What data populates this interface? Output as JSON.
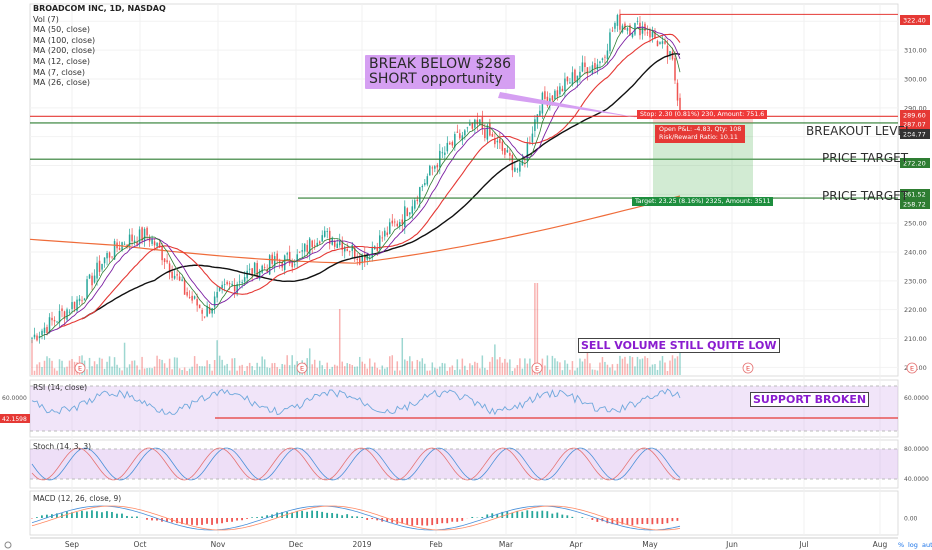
{
  "legend": {
    "title": "BROADCOM INC, 1D, NASDAQ",
    "items": [
      "Vol (7)",
      "MA (50, close)",
      "MA (100, close)",
      "MA (200, close)",
      "MA (12, close)",
      "MA (7, close)",
      "MA (26, close)"
    ]
  },
  "annotations": {
    "callout_line1": "BREAK BELOW $286",
    "callout_line2": "SHORT opportunity",
    "sell_volume": "SELL VOLUME STILL QUITE LOW",
    "support_broken": "SUPPORT BROKEN",
    "breakout_level": "BREAKOUT LEVEL",
    "price_target_1": "PRICE TARGET",
    "price_target_2": "PRICE TARGET"
  },
  "position": {
    "stop": "Stop: 2.30 (0.81%) 230, Amount: 751.6",
    "open_pnl": "Open P&L: -4.83, Qty: 108",
    "risk_reward": "Risk/Reward Ratio: 10.11",
    "target": "Target: 23.25 (8.16%) 2325, Amount: 3511"
  },
  "panels": {
    "rsi": "RSI (14, close)",
    "stoch": "Stoch (14, 3, 3)",
    "macd": "MACD (12, 26, close, 9)"
  },
  "colors": {
    "up": "#26a69a",
    "down": "#ef5350",
    "ma_black": "#111111",
    "ma_red": "#e53935",
    "ma_purple": "#7b1fa2",
    "ma_green": "#2e7d32",
    "ma_orange": "#ef6c3a",
    "rsi_line": "#6fa8dc",
    "stoch_k": "#4a90d9",
    "stoch_d": "#e57373",
    "macd_line": "#4a90d9",
    "signal_line": "#ff8a65"
  },
  "chart_data": {
    "type": "candlestick",
    "symbol": "BROADCOM INC",
    "interval": "1D",
    "exchange": "NASDAQ",
    "price_axis": {
      "ticks": [
        200.0,
        210.0,
        220.0,
        230.0,
        240.0,
        250.0,
        260.0,
        270.0,
        280.0,
        290.0,
        300.0,
        310.0,
        320.0
      ],
      "range": [
        197,
        326
      ]
    },
    "time_axis": {
      "labels": [
        "Sep",
        "Oct",
        "Nov",
        "Dec",
        "2019",
        "Feb",
        "Mar",
        "Apr",
        "May",
        "Jun",
        "Jul",
        "Aug"
      ]
    },
    "price_labels": [
      {
        "value": "322.40",
        "color": "#e53935"
      },
      {
        "value": "289.60",
        "color": "#e53935"
      },
      {
        "value": "287.07",
        "color": "#e53935"
      },
      {
        "value": "284.77",
        "color": "#333333"
      },
      {
        "value": "272.20",
        "color": "#2e7d32"
      },
      {
        "value": "261.52",
        "color": "#2e7d32"
      },
      {
        "value": "258.72",
        "color": "#2e7d32"
      }
    ],
    "levels": [
      {
        "price": 322.4,
        "color": "#e53935"
      },
      {
        "price": 287.07,
        "color": "#e53935"
      },
      {
        "price": 284.77,
        "color": "#2e7d32"
      },
      {
        "price": 272.2,
        "color": "#2e7d32"
      },
      {
        "price": 258.72,
        "color": "#2e7d32"
      }
    ],
    "rsi": {
      "last": "42.1598",
      "tick": "60.0000"
    },
    "stoch": {
      "ticks": [
        "80.0000",
        "40.0000"
      ]
    },
    "macd": {
      "tick": "0.00"
    },
    "earnings_markers": [
      "E",
      "E",
      "E",
      "E",
      "E"
    ],
    "scale_toggles": [
      "%",
      "log",
      "auto"
    ]
  }
}
